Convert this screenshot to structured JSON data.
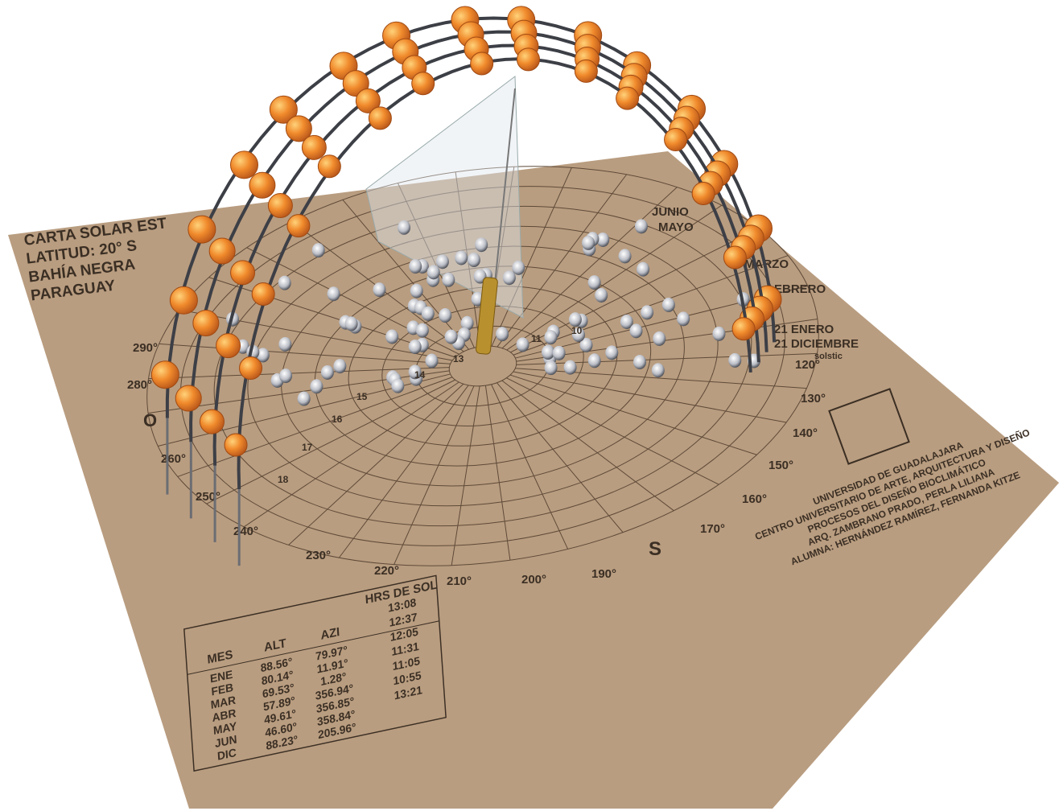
{
  "title_block": [
    "CARTA SOLAR EST",
    "LATITUD: 20° S",
    "BAHÍA NEGRA",
    "PARAGUAY"
  ],
  "credits": [
    "UNIVERSIDAD DE GUADALAJARA",
    "CENTRO UNIVERSITARIO DE ARTE, ARQUITECTURA Y DISEÑO",
    "PROCESOS DEL DISEÑO BIOCLIMÁTICO",
    "ARQ. ZAMBRANO PRADO, PERLA LILIANA",
    "ALUMNA: HERNÁNDEZ RAMÍREZ, FERNANDA KITZE"
  ],
  "cardinal": [
    "O",
    "S"
  ],
  "degree_labels": [
    "290°",
    "280°",
    "260°",
    "250°",
    "240°",
    "230°",
    "220°",
    "210°",
    "200°",
    "190°",
    "170°",
    "160°",
    "150°",
    "140°",
    "130°",
    "120°"
  ],
  "month_labels": [
    "JUNIO",
    "MAYO",
    "MARZO",
    "EBRERO",
    "21 ENERO",
    "21 DICIEMBRE",
    "solstic"
  ],
  "hour_labels": [
    "18",
    "17",
    "16",
    "15",
    "14",
    "13",
    "11",
    "10"
  ],
  "table": {
    "header": [
      "MES",
      "ALT",
      "AZI",
      "HRS DE SOL"
    ],
    "rows": [
      [
        "ENE",
        "88.56°",
        "79.97°",
        "13:08"
      ],
      [
        "FEB",
        "80.14°",
        "11.91°",
        "12:37"
      ],
      [
        "MAR",
        "69.53°",
        "1.28°",
        "12:05"
      ],
      [
        "ABR",
        "57.89°",
        "356.94°",
        "11:31"
      ],
      [
        "MAY",
        "49.61°",
        "356.85°",
        "11:05"
      ],
      [
        "JUN",
        "46.60°",
        "358.84°",
        "10:55"
      ],
      [
        "DIC",
        "88.23°",
        "205.96°",
        "13:21"
      ]
    ]
  }
}
